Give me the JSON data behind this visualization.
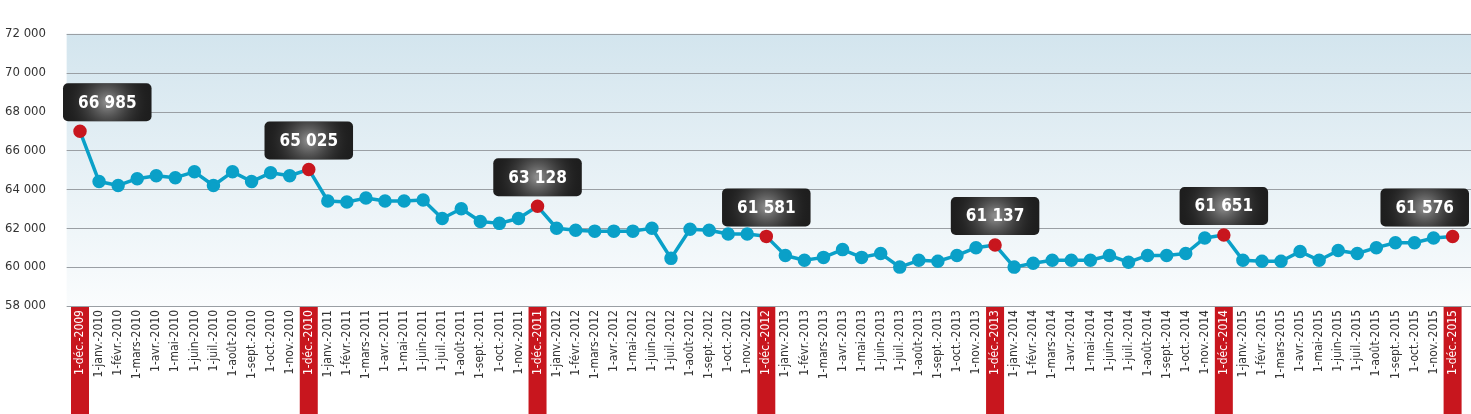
{
  "chart_data": {
    "type": "line",
    "categories": [
      "1-déc.-2009",
      "1-janv.-2010",
      "1-févr.-2010",
      "1-mars-2010",
      "1-avr.-2010",
      "1-mai-2010",
      "1-juin-2010",
      "1-juil.-2010",
      "1-août-2010",
      "1-sept.-2010",
      "1-oct.-2010",
      "1-nov.-2010",
      "1-déc.-2010",
      "1-janv.-2011",
      "1-févr.-2011",
      "1-mars-2011",
      "1-avr.-2011",
      "1-mai-2011",
      "1-juin-2011",
      "1-juil.-2011",
      "1-août-2011",
      "1-sept.-2011",
      "1-oct.-2011",
      "1-nov.-2011",
      "1-déc.-2011",
      "1-janv.-2012",
      "1-févr.-2012",
      "1-mars-2012",
      "1-avr.-2012",
      "1-mai-2012",
      "1-juin-2012",
      "1-juil.-2012",
      "1-août-2012",
      "1-sept.-2012",
      "1-oct.-2012",
      "1-nov.-2012",
      "1-déc.-2012",
      "1-janv.-2013",
      "1-févr.-2013",
      "1-mars-2013",
      "1-avr.-2013",
      "1-mai-2013",
      "1-juin-2013",
      "1-juil.-2013",
      "1-août-2013",
      "1-sept.-2013",
      "1-oct.-2013",
      "1-nov.-2013",
      "1-déc.-2013",
      "1-janv.-2014",
      "1-févr.-2014",
      "1-mars-2014",
      "1-avr.-2014",
      "1-mai-2014",
      "1-juin-2014",
      "1-juil.-2014",
      "1-août-2014",
      "1-sept.-2014",
      "1-oct.-2014",
      "1-nov.-2014",
      "1-déc.-2014",
      "1-janv.-2015",
      "1-févr.-2015",
      "1-mars-2015",
      "1-avr.-2015",
      "1-mai-2015",
      "1-juin-2015",
      "1-juil.-2015",
      "1-août-2015",
      "1-sept.-2015",
      "1-oct.-2015",
      "1-nov.-2015",
      "1-déc.-2015"
    ],
    "series": [
      {
        "color": "#0aa0c8",
        "values": [
          66985,
          64400,
          64200,
          64550,
          64700,
          64600,
          64900,
          64200,
          64900,
          64400,
          64850,
          64700,
          65025,
          63400,
          63350,
          63550,
          63400,
          63400,
          63450,
          62500,
          63000,
          62350,
          62250,
          62500,
          63128,
          62000,
          61900,
          61850,
          61850,
          61850,
          62000,
          60450,
          61950,
          61900,
          61700,
          61700,
          61581,
          60600,
          60350,
          60500,
          60900,
          60500,
          60700,
          60000,
          60350,
          60300,
          60600,
          61000,
          61137,
          60000,
          60200,
          60350,
          60350,
          60350,
          60600,
          60250,
          60600,
          60600,
          60700,
          61500,
          61651,
          60350,
          60300,
          60300,
          60800,
          60350,
          60850,
          60700,
          61000,
          61250,
          61250,
          61500,
          61576
        ],
        "colors": [
          "#c8161e",
          "#0aa0c8",
          "#0aa0c8",
          "#0aa0c8",
          "#0aa0c8",
          "#0aa0c8",
          "#0aa0c8",
          "#0aa0c8",
          "#0aa0c8",
          "#0aa0c8",
          "#0aa0c8",
          "#0aa0c8",
          "#c8161e",
          "#0aa0c8",
          "#0aa0c8",
          "#0aa0c8",
          "#0aa0c8",
          "#0aa0c8",
          "#0aa0c8",
          "#0aa0c8",
          "#0aa0c8",
          "#0aa0c8",
          "#0aa0c8",
          "#0aa0c8",
          "#c8161e",
          "#0aa0c8",
          "#0aa0c8",
          "#0aa0c8",
          "#0aa0c8",
          "#0aa0c8",
          "#0aa0c8",
          "#0aa0c8",
          "#0aa0c8",
          "#0aa0c8",
          "#0aa0c8",
          "#0aa0c8",
          "#c8161e",
          "#0aa0c8",
          "#0aa0c8",
          "#0aa0c8",
          "#0aa0c8",
          "#0aa0c8",
          "#0aa0c8",
          "#0aa0c8",
          "#0aa0c8",
          "#0aa0c8",
          "#0aa0c8",
          "#0aa0c8",
          "#c8161e",
          "#0aa0c8",
          "#0aa0c8",
          "#0aa0c8",
          "#0aa0c8",
          "#0aa0c8",
          "#0aa0c8",
          "#0aa0c8",
          "#0aa0c8",
          "#0aa0c8",
          "#0aa0c8",
          "#0aa0c8",
          "#c8161e",
          "#0aa0c8",
          "#0aa0c8",
          "#0aa0c8",
          "#0aa0c8",
          "#0aa0c8",
          "#0aa0c8",
          "#0aa0c8",
          "#0aa0c8",
          "#0aa0c8",
          "#0aa0c8",
          "#0aa0c8",
          "#c8161e"
        ],
        "value_labels": [
          "66 985",
          null,
          null,
          null,
          null,
          null,
          null,
          null,
          null,
          null,
          null,
          null,
          "65 025",
          null,
          null,
          null,
          null,
          null,
          null,
          null,
          null,
          null,
          null,
          null,
          "63 128",
          null,
          null,
          null,
          null,
          null,
          null,
          null,
          null,
          null,
          null,
          null,
          "61 581",
          null,
          null,
          null,
          null,
          null,
          null,
          null,
          null,
          null,
          null,
          null,
          "61 137",
          null,
          null,
          null,
          null,
          null,
          null,
          null,
          null,
          null,
          null,
          null,
          "61 651",
          null,
          null,
          null,
          null,
          null,
          null,
          null,
          null,
          null,
          null,
          null,
          "61 576"
        ]
      }
    ],
    "ylim": [
      58000,
      72000
    ],
    "yticks": [
      {
        "value": 58000,
        "label": "58 000"
      },
      {
        "value": 60000,
        "label": "60 000"
      },
      {
        "value": 62000,
        "label": "62 000"
      },
      {
        "value": 64000,
        "label": "64 000"
      },
      {
        "value": 66000,
        "label": "66 000"
      },
      {
        "value": 68000,
        "label": "68 000"
      },
      {
        "value": 70000,
        "label": "70 000"
      },
      {
        "value": 72000,
        "label": "72 000"
      }
    ],
    "grid": "y",
    "marker": "circle",
    "line_style": "solid",
    "legend": false
  }
}
